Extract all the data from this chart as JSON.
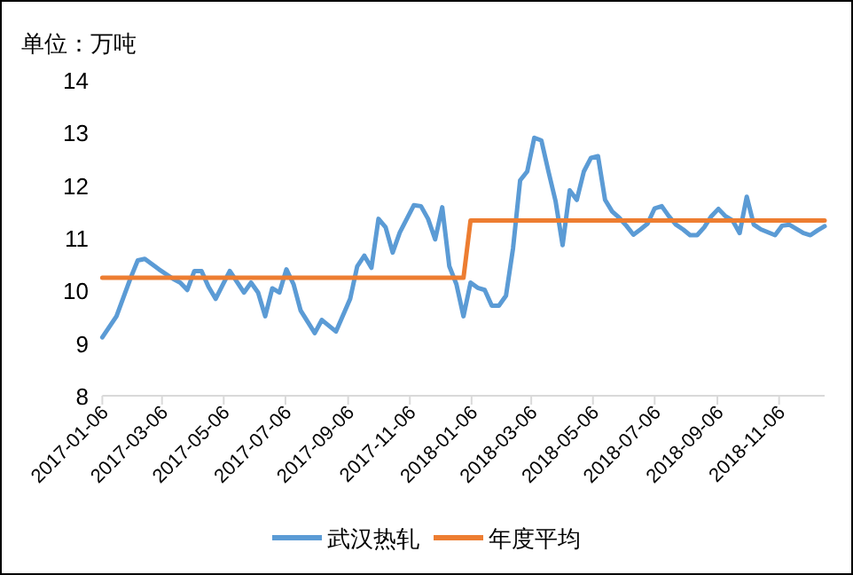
{
  "chart_data": {
    "type": "line",
    "ylabel": "单位：万吨",
    "xlim": [
      "2017-01-06",
      "2018-12-21"
    ],
    "xticks": [
      "2017-01-06",
      "2017-03-06",
      "2017-05-06",
      "2017-07-06",
      "2017-09-06",
      "2017-11-06",
      "2018-01-06",
      "2018-03-06",
      "2018-05-06",
      "2018-07-06",
      "2018-09-06",
      "2018-11-06"
    ],
    "ylim": [
      8,
      14
    ],
    "yticks": [
      8,
      9,
      10,
      11,
      12,
      13,
      14
    ],
    "grid": false,
    "legend": "bottom",
    "marker": "none",
    "line_style": "solid",
    "series": [
      {
        "name": "武汉热轧",
        "color": "#5b9bd5",
        "x": [
          "2017-01-06",
          "2017-01-20",
          "2017-02-03",
          "2017-02-10",
          "2017-02-17",
          "2017-03-03",
          "2017-03-17",
          "2017-03-24",
          "2017-03-31",
          "2017-04-07",
          "2017-04-14",
          "2017-04-21",
          "2017-04-28",
          "2017-05-12",
          "2017-05-26",
          "2017-06-02",
          "2017-06-09",
          "2017-06-16",
          "2017-06-23",
          "2017-06-30",
          "2017-07-07",
          "2017-07-14",
          "2017-07-21",
          "2017-08-04",
          "2017-08-11",
          "2017-08-25",
          "2017-09-08",
          "2017-09-15",
          "2017-09-22",
          "2017-09-29",
          "2017-10-06",
          "2017-10-13",
          "2017-10-20",
          "2017-10-27",
          "2017-11-10",
          "2017-11-17",
          "2017-11-24",
          "2017-12-01",
          "2017-12-08",
          "2017-12-15",
          "2017-12-22",
          "2017-12-29",
          "2018-01-05",
          "2018-01-12",
          "2018-01-19",
          "2018-01-26",
          "2018-02-02",
          "2018-02-09",
          "2018-02-16",
          "2018-02-23",
          "2018-03-02",
          "2018-03-09",
          "2018-03-16",
          "2018-03-23",
          "2018-03-30",
          "2018-04-06",
          "2018-04-13",
          "2018-04-20",
          "2018-04-27",
          "2018-05-04",
          "2018-05-11",
          "2018-05-18",
          "2018-05-25",
          "2018-06-01",
          "2018-06-08",
          "2018-06-15",
          "2018-06-22",
          "2018-06-29",
          "2018-07-06",
          "2018-07-13",
          "2018-07-20",
          "2018-07-27",
          "2018-08-03",
          "2018-08-10",
          "2018-08-17",
          "2018-08-24",
          "2018-08-31",
          "2018-09-07",
          "2018-09-14",
          "2018-09-21",
          "2018-09-28",
          "2018-10-05",
          "2018-10-12",
          "2018-10-19",
          "2018-11-02",
          "2018-11-09",
          "2018-11-16",
          "2018-11-23",
          "2018-11-30",
          "2018-12-07",
          "2018-12-14",
          "2018-12-21"
        ],
        "values": [
          9.11,
          9.51,
          10.24,
          10.57,
          10.6,
          10.4,
          10.22,
          10.15,
          10.01,
          10.37,
          10.37,
          10.07,
          9.84,
          10.37,
          9.96,
          10.15,
          9.96,
          9.51,
          10.04,
          9.96,
          10.4,
          10.12,
          9.62,
          9.19,
          9.44,
          9.22,
          9.84,
          10.46,
          10.66,
          10.43,
          11.36,
          11.2,
          10.72,
          11.1,
          11.62,
          11.6,
          11.36,
          10.97,
          11.58,
          10.46,
          10.12,
          9.51,
          10.15,
          10.05,
          10.01,
          9.71,
          9.71,
          9.9,
          10.8,
          12.09,
          12.26,
          12.9,
          12.85,
          12.26,
          11.7,
          10.86,
          11.9,
          11.72,
          12.26,
          12.52,
          12.55,
          11.72,
          11.5,
          11.38,
          11.23,
          11.06,
          11.16,
          11.27,
          11.56,
          11.6,
          11.41,
          11.25,
          11.16,
          11.05,
          11.05,
          11.2,
          11.41,
          11.55,
          11.41,
          11.33,
          11.09,
          11.78,
          11.25,
          11.16,
          11.05,
          11.23,
          11.25,
          11.17,
          11.09,
          11.05,
          11.14,
          11.22
        ]
      },
      {
        "name": "年度平均",
        "color": "#ed7d31",
        "x": [
          "2017-01-06",
          "2017-12-29",
          "2018-01-05",
          "2018-12-21"
        ],
        "values": [
          10.24,
          10.24,
          11.33,
          11.33
        ]
      }
    ]
  }
}
